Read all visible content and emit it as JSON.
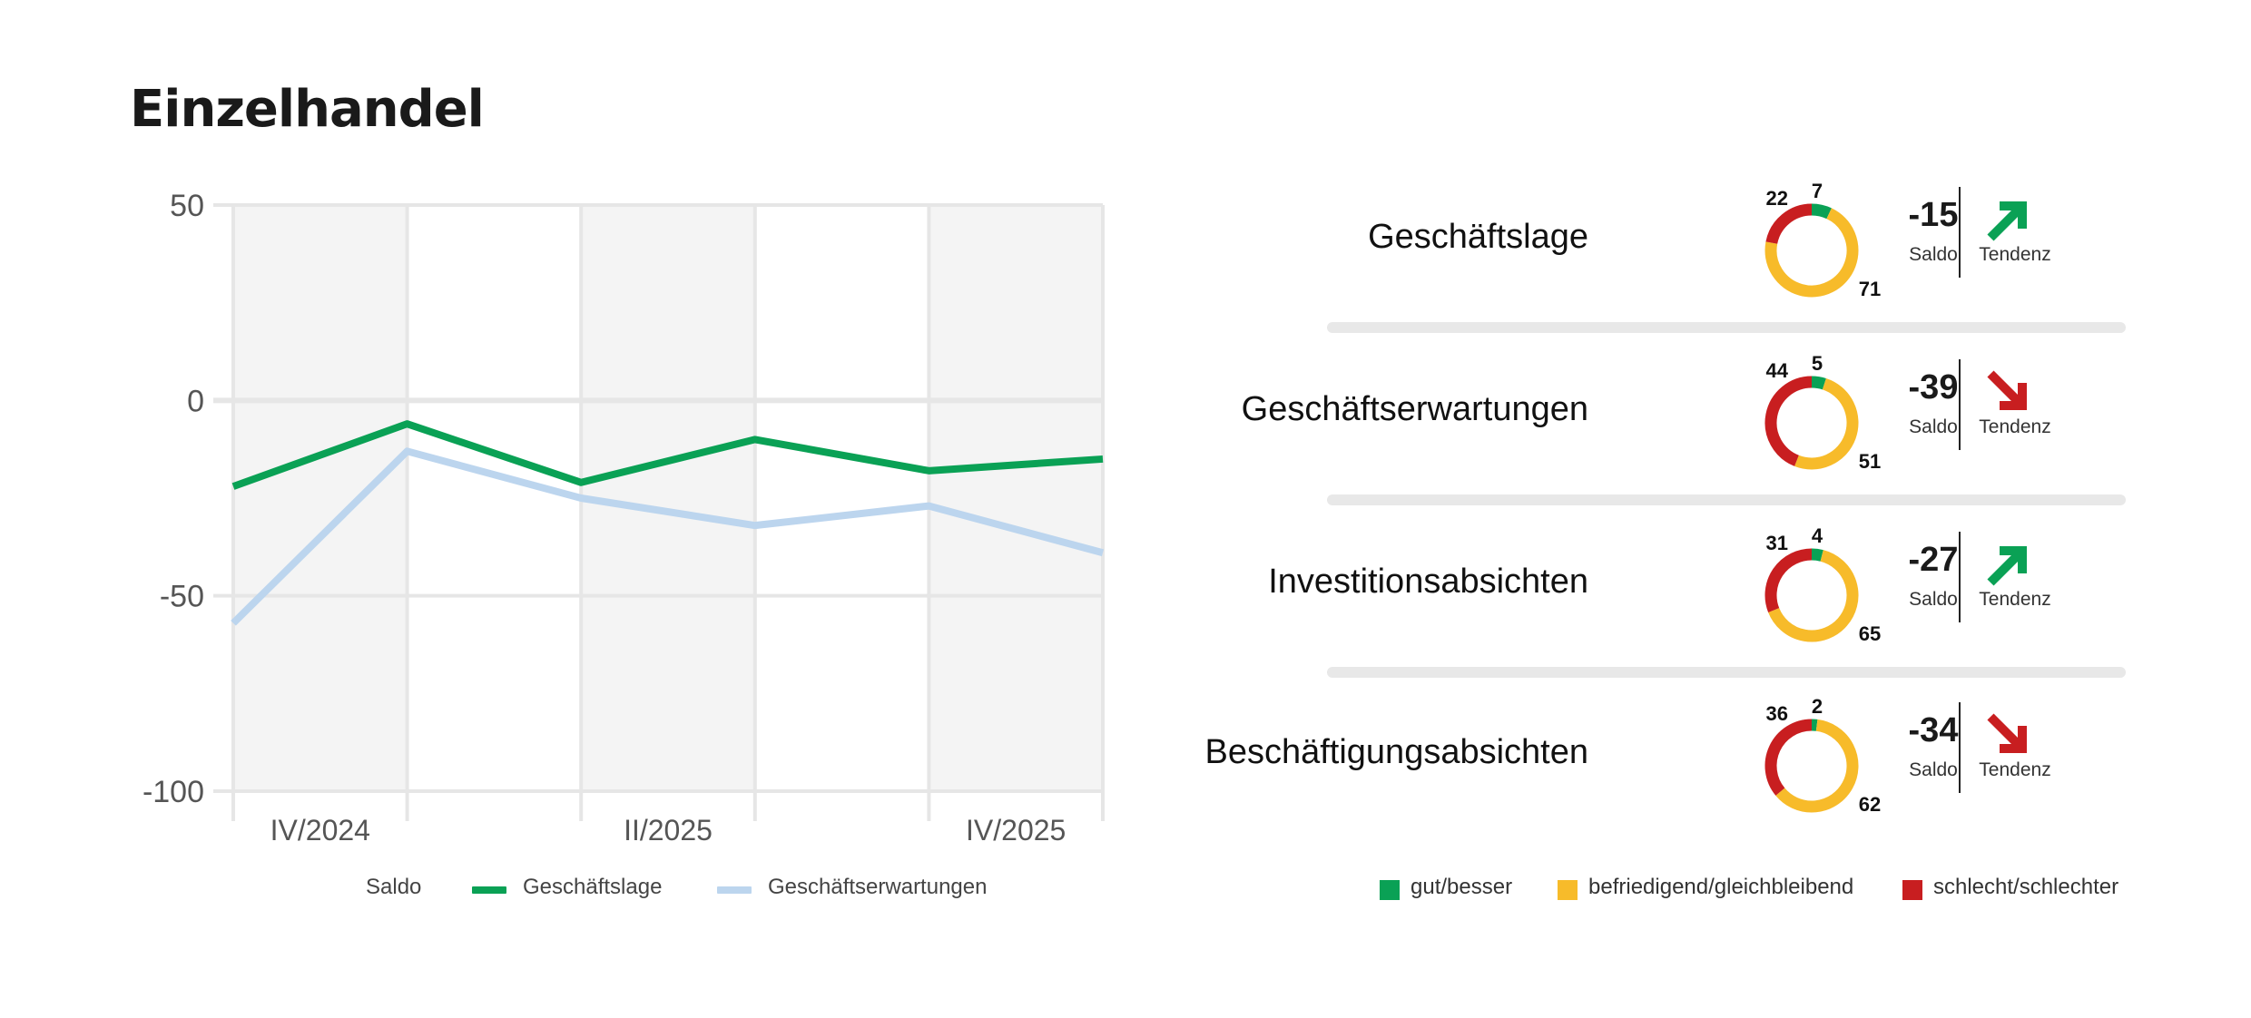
{
  "title": "Einzelhandel",
  "colors": {
    "green": "#0aa155",
    "lightblue": "#bcd5ee",
    "yellow": "#f7bb2a",
    "red": "#c81e20",
    "band": "#f4f4f4",
    "grid": "#e6e6e6"
  },
  "chart_data": [
    {
      "type": "line",
      "title": "Einzelhandel",
      "x_tick_labels": [
        "IV/2024",
        "II/2025",
        "IV/2025"
      ],
      "ylim": [
        -100,
        50
      ],
      "y_ticks": [
        50,
        0,
        -50,
        -100
      ],
      "grid": true,
      "legend_position": "bottom",
      "legend_title": "Saldo",
      "series": [
        {
          "name": "Geschäftslage",
          "color": "#0aa155",
          "values": [
            -22,
            -6,
            -21,
            -10,
            -18,
            -15
          ]
        },
        {
          "name": "Geschäftserwartungen",
          "color": "#bcd5ee",
          "values": [
            -57,
            -13,
            -25,
            -32,
            -27,
            -39
          ]
        }
      ]
    },
    {
      "type": "pie",
      "subtype": "donut",
      "categories": [
        "gut/besser",
        "befriedigend/gleichbleibend",
        "schlecht/schlechter"
      ],
      "colors": [
        "#0aa155",
        "#f7bb2a",
        "#c81e20"
      ],
      "indicators": [
        {
          "label": "Geschäftslage",
          "values": [
            7,
            71,
            22
          ],
          "saldo": "-15",
          "saldo_label": "Saldo",
          "tendency": "up",
          "tendency_label": "Tendenz"
        },
        {
          "label": "Geschäftserwartungen",
          "values": [
            5,
            51,
            44
          ],
          "saldo": "-39",
          "saldo_label": "Saldo",
          "tendency": "down",
          "tendency_label": "Tendenz"
        },
        {
          "label": "Investitionsabsichten",
          "values": [
            4,
            65,
            31
          ],
          "saldo": "-27",
          "saldo_label": "Saldo",
          "tendency": "up",
          "tendency_label": "Tendenz"
        },
        {
          "label": "Beschäftigungsabsichten",
          "values": [
            2,
            62,
            36
          ],
          "saldo": "-34",
          "saldo_label": "Saldo",
          "tendency": "down",
          "tendency_label": "Tendenz"
        }
      ]
    }
  ]
}
